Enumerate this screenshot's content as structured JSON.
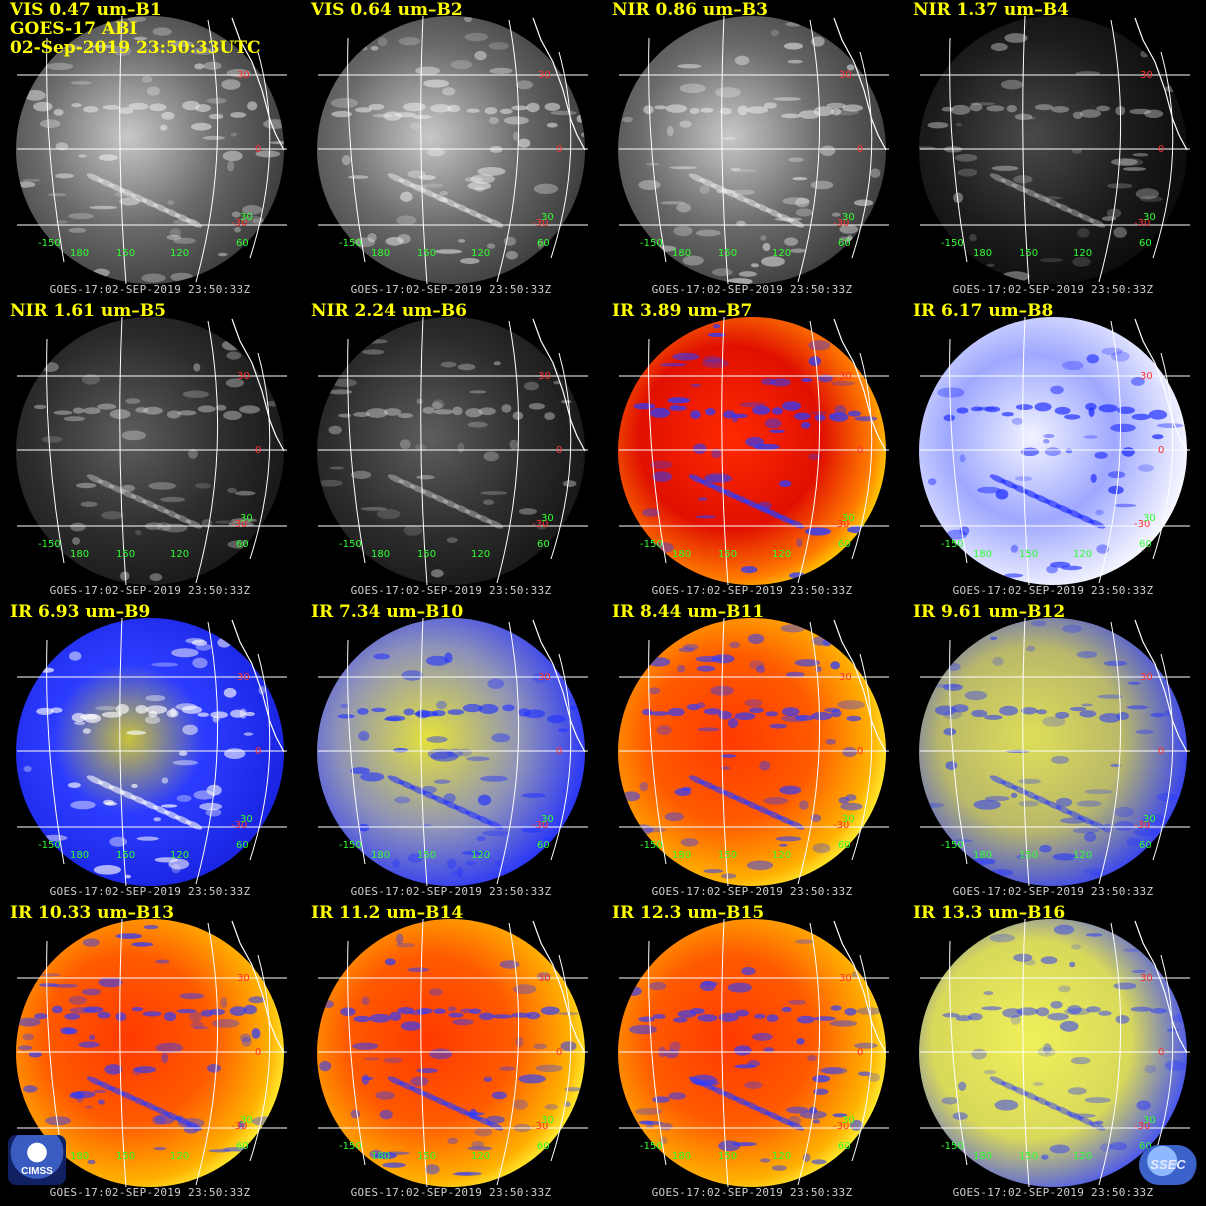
{
  "header": {
    "satellite_line": "GOES-17 ABI",
    "datetime_line": "02-Sep-2019 23:50:33UTC"
  },
  "timestamp": "GOES-17:02-SEP-2019 23:50:33Z",
  "lat_labels": [
    "30",
    "0",
    "-30",
    "30"
  ],
  "lon_labels": [
    "-150",
    "180",
    "150",
    "120",
    "60"
  ],
  "logos": {
    "left": "CIMSS",
    "right": "SSEC"
  },
  "colors": {
    "title": "#ffff00",
    "lat_label": "#ff3030",
    "lon_label": "#30ff30",
    "grid": "#ffffff"
  },
  "panels": [
    {
      "title": "VIS 0.47 um–B1",
      "palette": "vis"
    },
    {
      "title": "VIS 0.64 um–B2",
      "palette": "vis"
    },
    {
      "title": "NIR 0.86 um–B3",
      "palette": "vis"
    },
    {
      "title": "NIR 1.37 um–B4",
      "palette": "dark"
    },
    {
      "title": "NIR 1.61 um–B5",
      "palette": "dim"
    },
    {
      "title": "NIR 2.24 um–B6",
      "palette": "dim"
    },
    {
      "title": "IR 3.89 um–B7",
      "palette": "ir_red"
    },
    {
      "title": "IR 6.17 um–B8",
      "palette": "wv_light"
    },
    {
      "title": "IR 6.93 um–B9",
      "palette": "wv"
    },
    {
      "title": "IR 7.34 um–B10",
      "palette": "wv_yellow"
    },
    {
      "title": "IR 8.44 um–B11",
      "palette": "ir_orange"
    },
    {
      "title": "IR 9.61 um–B12",
      "palette": "ozone"
    },
    {
      "title": "IR 10.33 um–B13",
      "palette": "ir_orange"
    },
    {
      "title": "IR 11.2 um–B14",
      "palette": "ir_orange"
    },
    {
      "title": "IR 12.3 um–B15",
      "palette": "ir_orange"
    },
    {
      "title": "IR 13.3 um–B16",
      "palette": "co2"
    }
  ]
}
